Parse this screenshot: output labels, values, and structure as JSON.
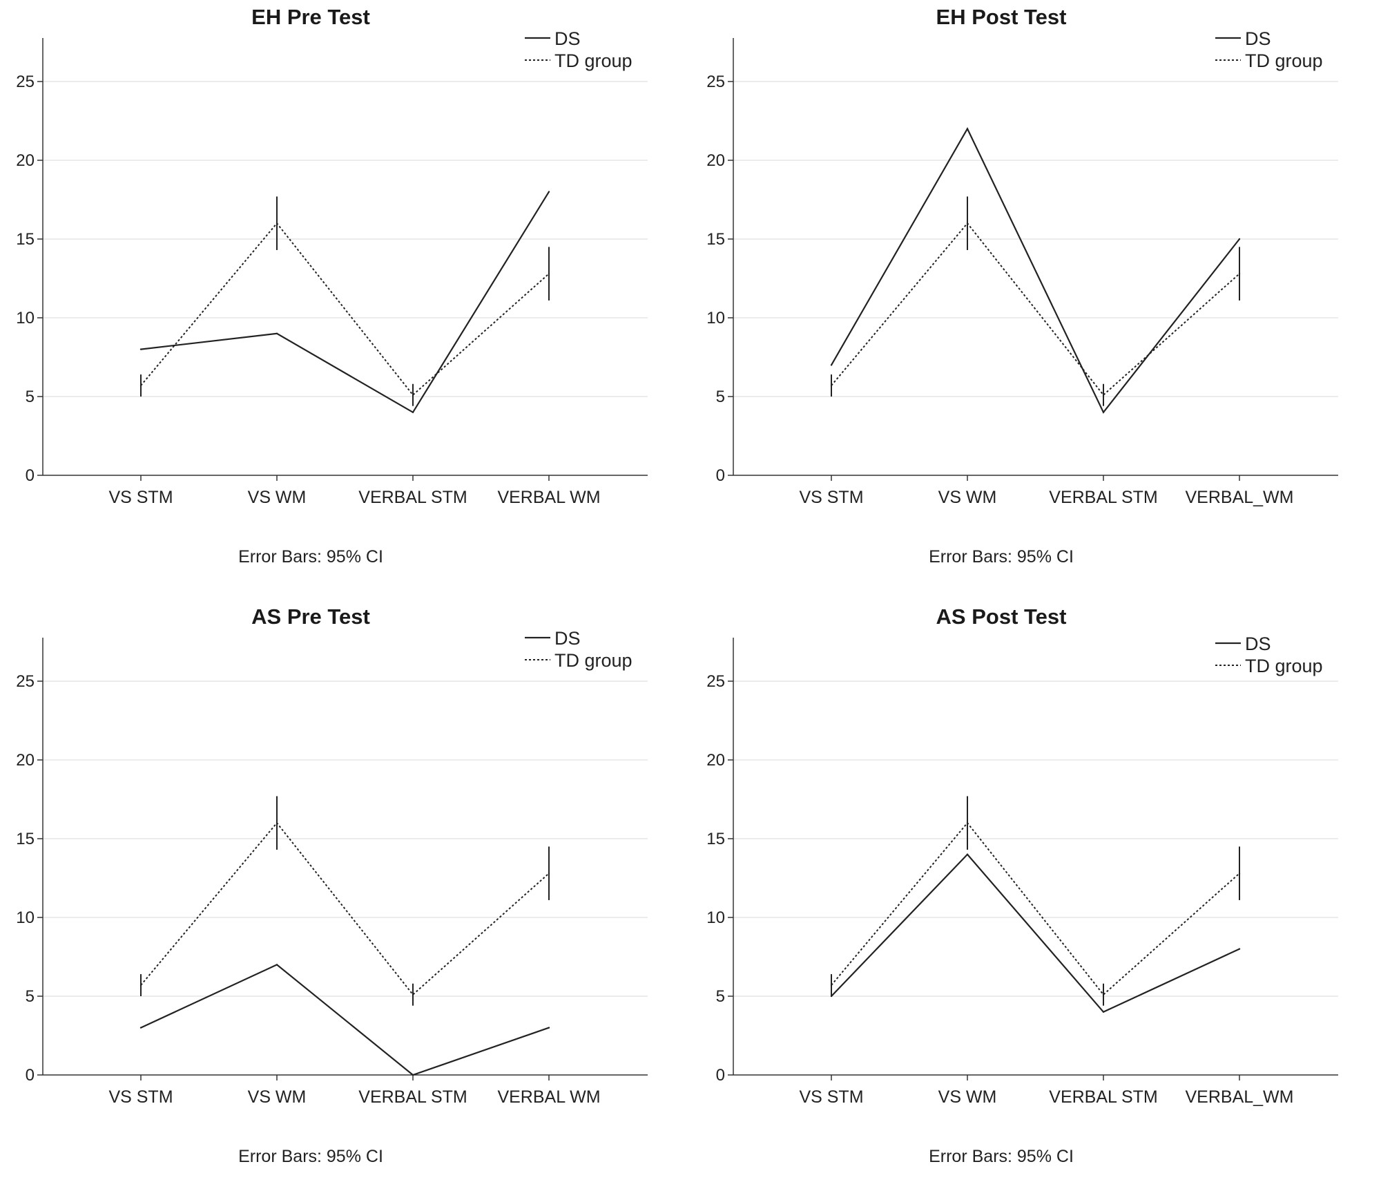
{
  "chart_data": [
    {
      "type": "line",
      "title": "EH Pre Test",
      "categories": [
        "VS STM",
        "VS WM",
        "VERBAL STM",
        "VERBAL WM"
      ],
      "ylim": [
        0,
        27
      ],
      "yticks": [
        0,
        5,
        10,
        15,
        20,
        25
      ],
      "grid": true,
      "legend_position": "top-right",
      "series": [
        {
          "name": "DS",
          "style": "solid",
          "values": [
            8,
            9,
            4,
            18
          ]
        },
        {
          "name": "TD group",
          "style": "dotted",
          "values": [
            5.7,
            16,
            5.1,
            12.8
          ],
          "ci_low": [
            5.0,
            14.3,
            4.4,
            11.1
          ],
          "ci_high": [
            6.4,
            17.7,
            5.8,
            14.5
          ]
        }
      ],
      "footnote": "Error Bars: 95% CI"
    },
    {
      "type": "line",
      "title": "EH Post Test",
      "categories": [
        "VS STM",
        "VS WM",
        "VERBAL STM",
        "VERBAL_WM"
      ],
      "ylim": [
        0,
        27
      ],
      "yticks": [
        0,
        5,
        10,
        15,
        20,
        25
      ],
      "grid": true,
      "legend_position": "top-right",
      "series": [
        {
          "name": "DS",
          "style": "solid",
          "values": [
            7,
            22,
            4,
            15
          ]
        },
        {
          "name": "TD group",
          "style": "dotted",
          "values": [
            5.7,
            16,
            5.1,
            12.8
          ],
          "ci_low": [
            5.0,
            14.3,
            4.4,
            11.1
          ],
          "ci_high": [
            6.4,
            17.7,
            5.8,
            14.5
          ]
        }
      ],
      "footnote": "Error Bars: 95% CI"
    },
    {
      "type": "line",
      "title": "AS Pre Test",
      "categories": [
        "VS STM",
        "VS WM",
        "VERBAL STM",
        "VERBAL WM"
      ],
      "ylim": [
        0,
        27
      ],
      "yticks": [
        0,
        5,
        10,
        15,
        20,
        25
      ],
      "grid": true,
      "legend_position": "top-right",
      "series": [
        {
          "name": "DS",
          "style": "solid",
          "values": [
            3,
            7,
            0,
            3
          ]
        },
        {
          "name": "TD group",
          "style": "dotted",
          "values": [
            5.7,
            16,
            5.1,
            12.8
          ],
          "ci_low": [
            5.0,
            14.3,
            4.4,
            11.1
          ],
          "ci_high": [
            6.4,
            17.7,
            5.8,
            14.5
          ]
        }
      ],
      "footnote": "Error Bars: 95% CI"
    },
    {
      "type": "line",
      "title": "AS Post Test",
      "categories": [
        "VS STM",
        "VS WM",
        "VERBAL STM",
        "VERBAL_WM"
      ],
      "ylim": [
        0,
        27
      ],
      "yticks": [
        0,
        5,
        10,
        15,
        20,
        25
      ],
      "grid": true,
      "legend_position": "top-right",
      "series": [
        {
          "name": "DS",
          "style": "solid",
          "values": [
            5,
            14,
            4,
            8
          ]
        },
        {
          "name": "TD group",
          "style": "dotted",
          "values": [
            5.7,
            16,
            5.1,
            12.8
          ],
          "ci_low": [
            5.0,
            14.3,
            4.4,
            11.1
          ],
          "ci_high": [
            6.4,
            17.7,
            5.8,
            14.5
          ]
        }
      ],
      "footnote": "Error Bars: 95% CI"
    }
  ]
}
